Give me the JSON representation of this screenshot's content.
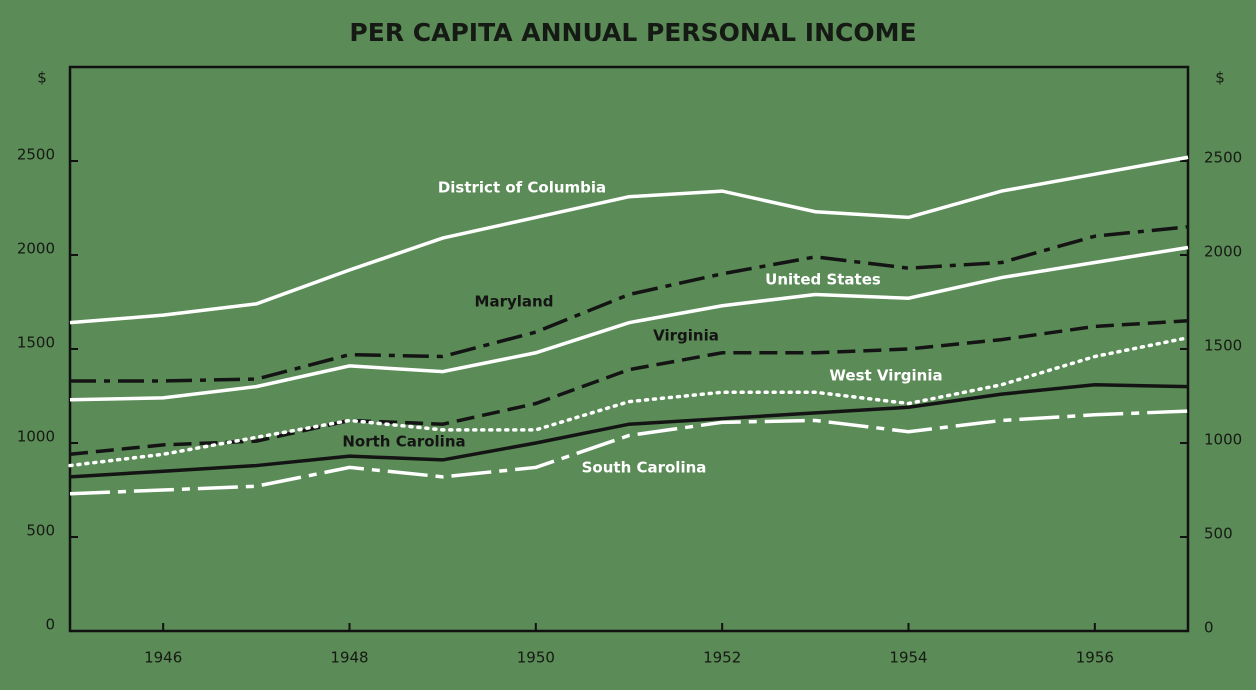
{
  "chart_data": {
    "type": "line",
    "title": "PER CAPITA ANNUAL PERSONAL INCOME",
    "y_label": "$",
    "x": [
      1945,
      1946,
      1947,
      1948,
      1949,
      1950,
      1951,
      1952,
      1953,
      1954,
      1955,
      1956,
      1957
    ],
    "xlim": [
      1945,
      1957
    ],
    "xticks": [
      1946,
      1948,
      1950,
      1952,
      1954,
      1956
    ],
    "ylim": [
      0,
      3000
    ],
    "yticks": [
      0,
      500,
      1000,
      1500,
      2000,
      2500
    ],
    "series": [
      {
        "name": "District of Columbia",
        "color": "#ffffff",
        "dash": "solid",
        "values": [
          1640,
          1680,
          1740,
          1920,
          2090,
          2200,
          2310,
          2340,
          2230,
          2200,
          2340,
          2430,
          2520
        ]
      },
      {
        "name": "Maryland",
        "color": "#141414",
        "dash": "dashdot",
        "values": [
          1330,
          1330,
          1340,
          1470,
          1460,
          1590,
          1790,
          1900,
          1990,
          1930,
          1960,
          2100,
          2150
        ]
      },
      {
        "name": "United States",
        "color": "#ffffff",
        "dash": "solid",
        "values": [
          1230,
          1240,
          1300,
          1410,
          1380,
          1480,
          1640,
          1730,
          1790,
          1770,
          1880,
          1960,
          2040
        ]
      },
      {
        "name": "Virginia",
        "color": "#141414",
        "dash": "dashed",
        "values": [
          940,
          990,
          1010,
          1120,
          1100,
          1210,
          1390,
          1480,
          1480,
          1500,
          1550,
          1620,
          1650
        ]
      },
      {
        "name": "West Virginia",
        "color": "#ffffff",
        "dash": "dotted",
        "values": [
          880,
          940,
          1030,
          1120,
          1070,
          1070,
          1220,
          1270,
          1270,
          1210,
          1310,
          1460,
          1560
        ]
      },
      {
        "name": "North Carolina",
        "color": "#141414",
        "dash": "solid",
        "values": [
          820,
          850,
          880,
          930,
          910,
          1000,
          1100,
          1130,
          1160,
          1190,
          1260,
          1310,
          1300
        ]
      },
      {
        "name": "South Carolina",
        "color": "#ffffff",
        "dash": "longdashdot",
        "values": [
          730,
          750,
          770,
          870,
          820,
          870,
          1040,
          1110,
          1120,
          1060,
          1120,
          1150,
          1170
        ]
      }
    ]
  }
}
